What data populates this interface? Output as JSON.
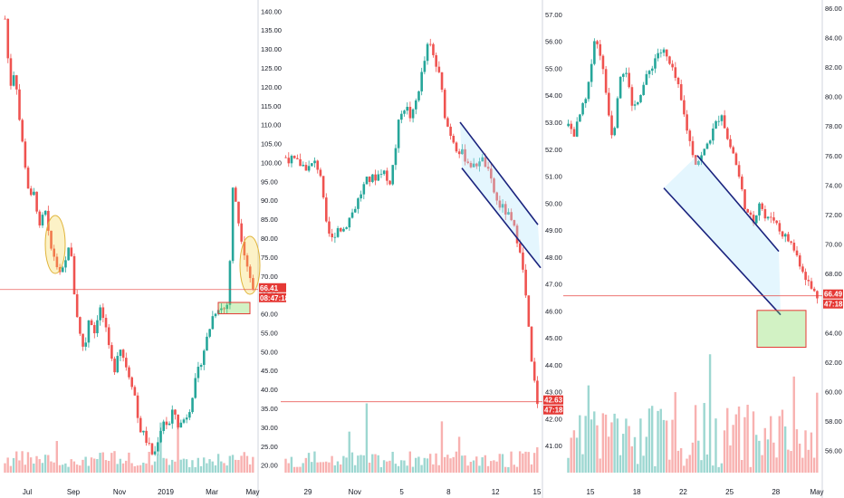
{
  "colors": {
    "up": "#26a69a",
    "down": "#ef5350",
    "channel": "#1a237e",
    "ellipse": "#f5d547",
    "target_box": "#7ed957",
    "price_line": "#e53935",
    "badge": "#e53935"
  },
  "chart_data": [
    {
      "type": "candlestick",
      "panel": "long-term",
      "price_axis": {
        "min": 18,
        "max": 142,
        "ticks": [
          "20.00",
          "25.00",
          "30.00",
          "35.00",
          "40.00",
          "45.00",
          "50.00",
          "55.00",
          "60.00",
          "65.00",
          "70.00",
          "75.00",
          "80.00",
          "85.00",
          "90.00",
          "95.00",
          "100.00",
          "105.00",
          "110.00",
          "115.00",
          "120.00",
          "125.00",
          "130.00",
          "135.00",
          "140.00"
        ]
      },
      "time_labels": [
        "Jul",
        "Sep",
        "Nov",
        "2019",
        "Mar",
        "May"
      ],
      "current_price": "66.41",
      "countdown": "08:47:18",
      "close_path": [
        138,
        120,
        125,
        110,
        100,
        90,
        92,
        82,
        88,
        78,
        75,
        70,
        72,
        80,
        65,
        55,
        50,
        60,
        55,
        62,
        58,
        50,
        45,
        52,
        48,
        44,
        40,
        30,
        28,
        25,
        22,
        28,
        32,
        30,
        35,
        30,
        32,
        34,
        40,
        45,
        50,
        55,
        60,
        62,
        61,
        63,
        95,
        85,
        78,
        72,
        66.41
      ],
      "highlight_ellipses": [
        {
          "from": 80,
          "to": 70
        },
        {
          "from": 80,
          "to": 65
        }
      ],
      "target_zone": {
        "low": 60,
        "high": 63
      }
    },
    {
      "type": "candlestick",
      "panel": "mid-term",
      "price_axis": {
        "min": 40,
        "max": 57.4,
        "ticks": [
          "41.00",
          "42.00",
          "43.00",
          "44.00",
          "45.00",
          "46.00",
          "47.00",
          "48.00",
          "49.00",
          "50.00",
          "51.00",
          "52.00",
          "53.00",
          "54.00",
          "55.00",
          "56.00",
          "57.00"
        ]
      },
      "time_labels": [
        "29",
        "Nov",
        "5",
        "8",
        "12",
        "15"
      ],
      "current_price": "42.63",
      "countdown": "47:18",
      "close_path": [
        51.7,
        51.6,
        51.5,
        51.4,
        51.3,
        51.5,
        51.2,
        49.2,
        48.6,
        49.1,
        49.0,
        49.4,
        49.8,
        50.3,
        50.8,
        50.9,
        51.0,
        51.3,
        50.6,
        51.7,
        53.4,
        53.6,
        53.1,
        54.0,
        55.0,
        56.0,
        55.3,
        54.6,
        53.0,
        52.5,
        52.0,
        51.8,
        51.5,
        51.3,
        51.7,
        51.4,
        50.7,
        50.0,
        49.8,
        49.5,
        49.0,
        48.3,
        46.5,
        44.0,
        42.63
      ],
      "channel": {
        "upper_from": 53.0,
        "upper_to": 49.2,
        "lower_from": 51.3,
        "lower_to": 47.6
      }
    },
    {
      "type": "candlestick",
      "panel": "short-term",
      "price_axis": {
        "min": 54.5,
        "max": 86.3,
        "ticks": [
          "56.00",
          "58.00",
          "60.00",
          "62.00",
          "64.00",
          "66.00",
          "68.00",
          "70.00",
          "72.00",
          "74.00",
          "76.00",
          "78.00",
          "80.00",
          "82.00",
          "84.00",
          "86.00"
        ]
      },
      "time_labels": [
        "15",
        "18",
        "22",
        "25",
        "28",
        "May"
      ],
      "current_price": "66.49",
      "countdown": "47:18",
      "close_path": [
        78,
        77.5,
        79,
        80,
        84,
        83,
        80,
        77,
        81.5,
        82,
        79,
        80,
        81,
        82,
        83,
        83,
        82,
        81,
        79,
        77,
        75.5,
        76,
        77,
        78,
        79,
        77,
        76,
        74,
        72,
        71.5,
        73,
        71.5,
        72,
        71,
        70.5,
        70,
        69,
        68,
        67,
        66.49
      ],
      "channel": {
        "upper_from": 76,
        "upper_to": 69.5,
        "lower_from": 73.8,
        "lower_to": 65.2
      },
      "target_zone": {
        "low": 63,
        "high": 65.5
      }
    }
  ]
}
